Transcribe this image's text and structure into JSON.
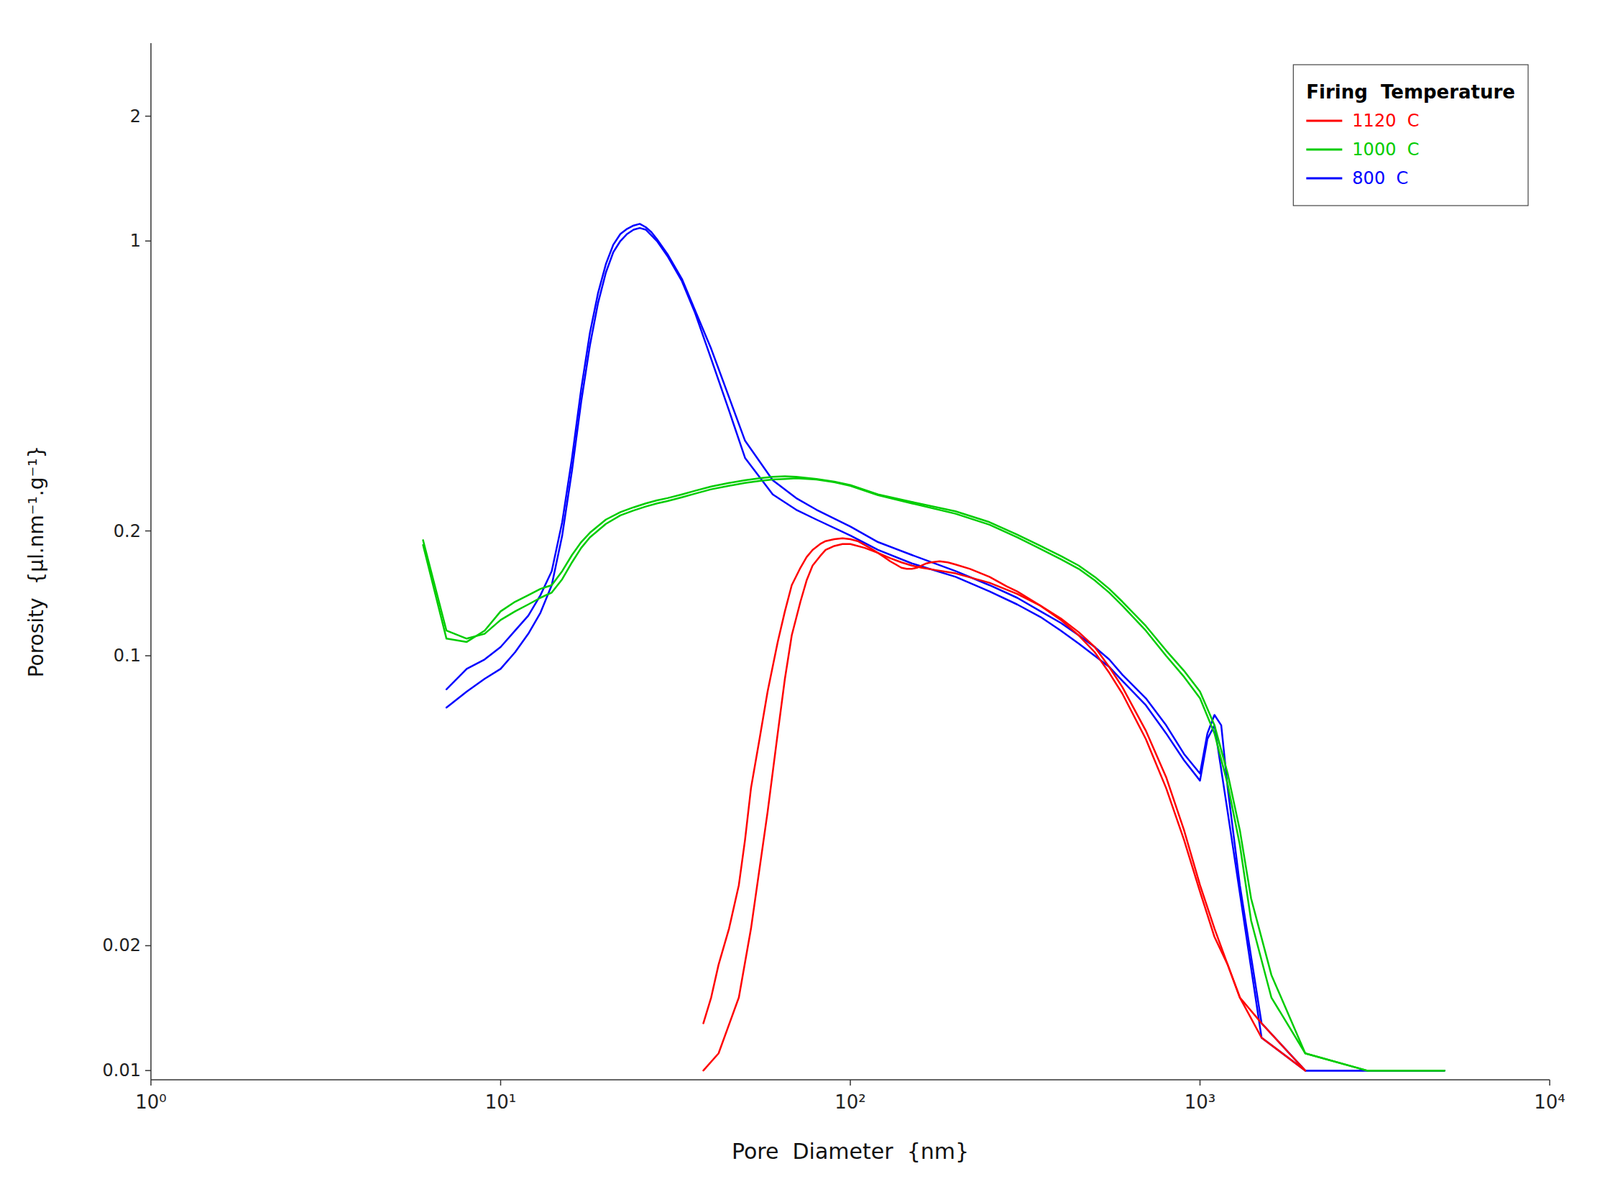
{
  "chart_data": {
    "type": "line",
    "xlabel": "Pore  Diameter  {nm}",
    "ylabel": "Porosity  {µl.nm⁻¹.g⁻¹}",
    "log": true,
    "grid": false,
    "legend": "upper right",
    "legend_title": "Firing  Temperature",
    "xlim": [
      1,
      10000
    ],
    "ylim": [
      0.0095,
      3.0
    ],
    "xticks": [
      {
        "value": 1,
        "label": "10⁰"
      },
      {
        "value": 10,
        "label": "10¹"
      },
      {
        "value": 100,
        "label": "10²"
      },
      {
        "value": 1000,
        "label": "10³"
      },
      {
        "value": 10000,
        "label": "10⁴"
      }
    ],
    "yticks": [
      0.01,
      0.02,
      0.1,
      0.2,
      1,
      2
    ],
    "series": [
      {
        "name": "800  C",
        "color": "#0000ff",
        "x": [
          7,
          8,
          9,
          10,
          11,
          12,
          13,
          14,
          15,
          16,
          17,
          18,
          19,
          20,
          21,
          22,
          23,
          24,
          25,
          26,
          27,
          28,
          30,
          33,
          36,
          40,
          45,
          50,
          60,
          70,
          80,
          100,
          120,
          150,
          200,
          250,
          300,
          350,
          400,
          450,
          500,
          550,
          600,
          700,
          800,
          900,
          1000,
          1050,
          1100,
          1150,
          1200,
          1300,
          1500,
          2000,
          5000
        ],
        "values": [
          0.083,
          0.093,
          0.098,
          0.105,
          0.115,
          0.125,
          0.14,
          0.16,
          0.21,
          0.3,
          0.44,
          0.6,
          0.75,
          0.88,
          0.98,
          1.04,
          1.07,
          1.09,
          1.1,
          1.08,
          1.05,
          1.01,
          0.93,
          0.81,
          0.68,
          0.55,
          0.42,
          0.33,
          0.265,
          0.24,
          0.225,
          0.205,
          0.188,
          0.175,
          0.16,
          0.148,
          0.138,
          0.128,
          0.12,
          0.112,
          0.105,
          0.098,
          0.09,
          0.079,
          0.068,
          0.058,
          0.052,
          0.065,
          0.072,
          0.068,
          0.048,
          0.028,
          0.013,
          0.01,
          0.01
        ]
      },
      {
        "name": "800  C",
        "color": "#0000ff",
        "x": [
          7,
          8,
          9,
          10,
          11,
          12,
          13,
          14,
          15,
          16,
          17,
          18,
          19,
          20,
          21,
          22,
          23,
          24,
          25,
          26,
          28,
          30,
          33,
          36,
          40,
          45,
          50,
          60,
          70,
          80,
          100,
          120,
          150,
          200,
          250,
          300,
          350,
          400,
          450,
          500,
          550,
          600,
          700,
          800,
          900,
          1000,
          1050,
          1100,
          1200,
          1500,
          2000,
          5000
        ],
        "values": [
          0.075,
          0.082,
          0.088,
          0.093,
          0.102,
          0.113,
          0.127,
          0.148,
          0.195,
          0.28,
          0.41,
          0.56,
          0.71,
          0.84,
          0.94,
          1.0,
          1.04,
          1.065,
          1.075,
          1.065,
          1.0,
          0.92,
          0.8,
          0.67,
          0.52,
          0.39,
          0.3,
          0.245,
          0.225,
          0.213,
          0.195,
          0.18,
          0.167,
          0.155,
          0.143,
          0.133,
          0.124,
          0.115,
          0.107,
          0.1,
          0.094,
          0.087,
          0.076,
          0.065,
          0.056,
          0.05,
          0.063,
          0.068,
          0.042,
          0.012,
          0.01,
          0.01
        ]
      },
      {
        "name": "1000  C",
        "color": "#00cc00",
        "x": [
          6,
          7,
          8,
          9,
          10,
          11,
          12,
          13,
          14,
          15,
          16,
          17,
          18,
          20,
          22,
          24,
          26,
          28,
          30,
          33,
          36,
          40,
          45,
          50,
          55,
          60,
          65,
          70,
          80,
          90,
          100,
          120,
          150,
          200,
          250,
          300,
          350,
          400,
          450,
          500,
          550,
          600,
          700,
          800,
          900,
          1000,
          1100,
          1200,
          1300,
          1400,
          1600,
          2000,
          3000,
          5000
        ],
        "values": [
          0.185,
          0.11,
          0.108,
          0.115,
          0.128,
          0.135,
          0.14,
          0.145,
          0.148,
          0.16,
          0.175,
          0.188,
          0.198,
          0.213,
          0.222,
          0.228,
          0.233,
          0.237,
          0.24,
          0.245,
          0.25,
          0.256,
          0.261,
          0.265,
          0.268,
          0.27,
          0.271,
          0.27,
          0.267,
          0.263,
          0.258,
          0.245,
          0.235,
          0.223,
          0.21,
          0.196,
          0.184,
          0.174,
          0.165,
          0.155,
          0.145,
          0.135,
          0.118,
          0.103,
          0.092,
          0.082,
          0.068,
          0.052,
          0.038,
          0.026,
          0.017,
          0.011,
          0.01,
          0.01
        ]
      },
      {
        "name": "1000  C",
        "color": "#00cc00",
        "x": [
          6,
          7,
          8,
          9,
          10,
          11,
          12,
          13,
          14,
          15,
          16,
          17,
          18,
          20,
          22,
          24,
          26,
          28,
          30,
          33,
          36,
          40,
          45,
          50,
          55,
          60,
          65,
          70,
          80,
          90,
          100,
          120,
          150,
          200,
          250,
          300,
          350,
          400,
          450,
          500,
          550,
          600,
          700,
          800,
          900,
          1000,
          1100,
          1200,
          1300,
          1400,
          1600,
          2000,
          3000,
          5000
        ],
        "values": [
          0.19,
          0.115,
          0.11,
          0.113,
          0.122,
          0.128,
          0.133,
          0.138,
          0.142,
          0.153,
          0.168,
          0.182,
          0.193,
          0.208,
          0.218,
          0.224,
          0.229,
          0.233,
          0.236,
          0.241,
          0.246,
          0.252,
          0.257,
          0.261,
          0.264,
          0.266,
          0.267,
          0.268,
          0.266,
          0.262,
          0.257,
          0.244,
          0.233,
          0.22,
          0.207,
          0.193,
          0.181,
          0.171,
          0.162,
          0.152,
          0.142,
          0.132,
          0.115,
          0.1,
          0.089,
          0.079,
          0.065,
          0.049,
          0.035,
          0.023,
          0.015,
          0.011,
          0.01,
          0.01
        ]
      },
      {
        "name": "1120  C",
        "color": "#ff0000",
        "x": [
          38,
          40,
          42,
          45,
          48,
          50,
          52,
          55,
          58,
          62,
          65,
          68,
          72,
          75,
          78,
          82,
          85,
          90,
          95,
          100,
          105,
          110,
          115,
          120,
          125,
          130,
          135,
          140,
          145,
          150,
          155,
          160,
          165,
          170,
          180,
          190,
          200,
          220,
          250,
          280,
          300,
          350,
          400,
          450,
          500,
          550,
          600,
          700,
          800,
          900,
          1000,
          1100,
          1200,
          1300,
          1500,
          1800,
          2000
        ],
        "values": [
          0.013,
          0.015,
          0.018,
          0.022,
          0.028,
          0.036,
          0.048,
          0.063,
          0.082,
          0.108,
          0.128,
          0.148,
          0.163,
          0.173,
          0.18,
          0.186,
          0.189,
          0.191,
          0.192,
          0.191,
          0.189,
          0.185,
          0.181,
          0.177,
          0.173,
          0.169,
          0.166,
          0.163,
          0.162,
          0.162,
          0.163,
          0.165,
          0.167,
          0.168,
          0.169,
          0.168,
          0.166,
          0.162,
          0.155,
          0.147,
          0.143,
          0.132,
          0.122,
          0.112,
          0.102,
          0.091,
          0.081,
          0.063,
          0.048,
          0.036,
          0.027,
          0.021,
          0.018,
          0.015,
          0.013,
          0.011,
          0.01
        ]
      },
      {
        "name": "1120  C",
        "color": "#ff0000",
        "x": [
          38,
          42,
          48,
          52,
          58,
          62,
          65,
          68,
          72,
          75,
          78,
          82,
          85,
          90,
          95,
          100,
          110,
          120,
          130,
          140,
          150,
          160,
          175,
          200,
          250,
          300,
          350,
          400,
          450,
          500,
          550,
          600,
          700,
          800,
          900,
          1000,
          1100,
          1200,
          1300,
          1500,
          2000
        ],
        "values": [
          0.01,
          0.011,
          0.015,
          0.022,
          0.042,
          0.065,
          0.088,
          0.112,
          0.135,
          0.152,
          0.165,
          0.174,
          0.18,
          0.184,
          0.186,
          0.186,
          0.182,
          0.177,
          0.172,
          0.168,
          0.165,
          0.163,
          0.161,
          0.158,
          0.15,
          0.141,
          0.132,
          0.123,
          0.114,
          0.105,
          0.094,
          0.084,
          0.066,
          0.051,
          0.038,
          0.028,
          0.022,
          0.018,
          0.015,
          0.012,
          0.01
        ]
      }
    ]
  }
}
